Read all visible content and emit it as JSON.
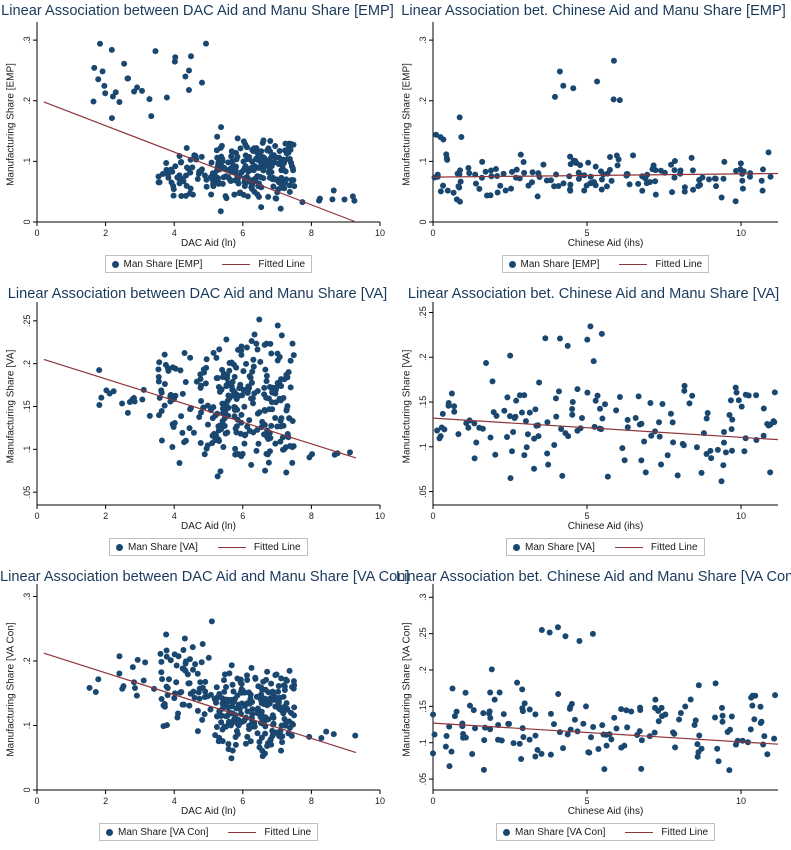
{
  "colors": {
    "marker": "#1a476f",
    "fit": "#90353b",
    "axis": "#000000",
    "title": "#1a3a5c"
  },
  "chart_data": [
    {
      "id": "p1",
      "type": "scatter",
      "title": "Linear Association between DAC Aid and Manu Share [EMP]",
      "xlabel": "DAC Aid (ln)",
      "ylabel": "Manufacturing Share [EMP]",
      "xlim": [
        0,
        10
      ],
      "ylim": [
        0,
        0.32
      ],
      "xticks": [
        "0",
        "2",
        "4",
        "6",
        "8",
        "10"
      ],
      "yticks": [
        0,
        0.1,
        0.2,
        0.3
      ],
      "ytick_labels": [
        "0",
        ".1",
        ".2",
        ".3"
      ],
      "legend": {
        "scatter": "Man Share [EMP]",
        "line": "Fitted Line"
      },
      "fit": [
        [
          0.2,
          0.198
        ],
        [
          9.3,
          0.0
        ]
      ],
      "seed": 11,
      "clusters": [
        {
          "x": [
            5.2,
            7.5
          ],
          "y": [
            0.01,
            0.16
          ],
          "n": 200
        },
        {
          "x": [
            3.5,
            5.2
          ],
          "y": [
            0.03,
            0.13
          ],
          "n": 60
        },
        {
          "x": [
            1.5,
            5
          ],
          "y": [
            0.15,
            0.32
          ],
          "n": 30
        },
        {
          "x": [
            7.2,
            9.3
          ],
          "y": [
            0.02,
            0.06
          ],
          "n": 8
        }
      ]
    },
    {
      "id": "p2",
      "type": "scatter",
      "title": "Linear Association bet. Chinese Aid and Manu Share [EMP]",
      "xlabel": "Chinese Aid (ihs)",
      "ylabel": "Manufacturing Share [EMP]",
      "xlim": [
        0,
        11.2
      ],
      "ylim": [
        0,
        0.32
      ],
      "xticks": [
        "0",
        "5",
        "10"
      ],
      "yticks": [
        0,
        0.1,
        0.2,
        0.3
      ],
      "ytick_labels": [
        "0",
        ".1",
        ".2",
        ".3"
      ],
      "legend": {
        "scatter": "Man Share [EMP]",
        "line": "Fitted Line"
      },
      "fit": [
        [
          0,
          0.074
        ],
        [
          11.2,
          0.08
        ]
      ],
      "seed": 23,
      "clusters": [
        {
          "x": [
            0,
            11
          ],
          "y": [
            0.02,
            0.13
          ],
          "n": 150
        },
        {
          "x": [
            3,
            7
          ],
          "y": [
            0.17,
            0.28
          ],
          "n": 8
        },
        {
          "x": [
            0,
            1
          ],
          "y": [
            0.1,
            0.19
          ],
          "n": 5
        }
      ]
    },
    {
      "id": "p3",
      "type": "scatter",
      "title": "Linear Association between DAC Aid and Manu Share [VA]",
      "xlabel": "DAC Aid (ln)",
      "ylabel": "Manufacturing Share [VA]",
      "xlim": [
        0,
        10
      ],
      "ylim": [
        0.035,
        0.265
      ],
      "xticks": [
        "0",
        "2",
        "4",
        "6",
        "8",
        "10"
      ],
      "yticks": [
        0.05,
        0.1,
        0.15,
        0.2,
        0.25
      ],
      "ytick_labels": [
        ".05",
        ".1",
        ".15",
        ".2",
        ".25"
      ],
      "legend": {
        "scatter": "Man Share [VA]",
        "line": "Fitted Line"
      },
      "fit": [
        [
          0.2,
          0.205
        ],
        [
          9.3,
          0.09
        ]
      ],
      "seed": 37,
      "clusters": [
        {
          "x": [
            5.2,
            7.5
          ],
          "y": [
            0.04,
            0.26
          ],
          "n": 220
        },
        {
          "x": [
            3.5,
            5.2
          ],
          "y": [
            0.06,
            0.25
          ],
          "n": 70
        },
        {
          "x": [
            1.5,
            3.5
          ],
          "y": [
            0.12,
            0.21
          ],
          "n": 15
        },
        {
          "x": [
            7.5,
            9.3
          ],
          "y": [
            0.08,
            0.11
          ],
          "n": 5
        }
      ]
    },
    {
      "id": "p4",
      "type": "scatter",
      "title": "Linear Association bet. Chinese Aid and Manu Share [VA]",
      "xlabel": "Chinese Aid (ihs)",
      "ylabel": "Manufacturing Share [VA]",
      "xlim": [
        0,
        11.2
      ],
      "ylim": [
        0.035,
        0.255
      ],
      "xticks": [
        "0",
        "5",
        "10"
      ],
      "yticks": [
        0.05,
        0.1,
        0.15,
        0.2,
        0.25
      ],
      "ytick_labels": [
        ".05",
        ".1",
        ".15",
        ".2",
        ".25"
      ],
      "legend": {
        "scatter": "Man Share [VA]",
        "line": "Fitted Line"
      },
      "fit": [
        [
          0,
          0.132
        ],
        [
          11.2,
          0.108
        ]
      ],
      "seed": 41,
      "clusters": [
        {
          "x": [
            0,
            11.2
          ],
          "y": [
            0.04,
            0.21
          ],
          "n": 150
        },
        {
          "x": [
            3.5,
            5.5
          ],
          "y": [
            0.2,
            0.245
          ],
          "n": 6
        }
      ]
    },
    {
      "id": "p5",
      "type": "scatter",
      "title": "Linear Association between DAC Aid and Manu Share [VA Con]",
      "xlabel": "DAC Aid (ln)",
      "ylabel": "Manufacturing Share [VA Con]",
      "xlim": [
        0,
        10
      ],
      "ylim": [
        0,
        0.31
      ],
      "xticks": [
        "0",
        "2",
        "4",
        "6",
        "8",
        "10"
      ],
      "yticks": [
        0,
        0.1,
        0.2,
        0.3
      ],
      "ytick_labels": [
        "0",
        ".1",
        ".2",
        ".3"
      ],
      "legend": {
        "scatter": "Man Share [VA Con]",
        "line": "Fitted Line"
      },
      "fit": [
        [
          0.2,
          0.212
        ],
        [
          9.3,
          0.058
        ]
      ],
      "seed": 53,
      "clusters": [
        {
          "x": [
            5.2,
            7.5
          ],
          "y": [
            0.03,
            0.22
          ],
          "n": 230
        },
        {
          "x": [
            3.5,
            5.2
          ],
          "y": [
            0.05,
            0.29
          ],
          "n": 70
        },
        {
          "x": [
            1.5,
            3.5
          ],
          "y": [
            0.13,
            0.22
          ],
          "n": 15
        },
        {
          "x": [
            7.5,
            9.3
          ],
          "y": [
            0.07,
            0.1
          ],
          "n": 5
        }
      ]
    },
    {
      "id": "p6",
      "type": "scatter",
      "title": "Linear Association bet. Chinese Aid and Manu Share [VA Con]",
      "xlabel": "Chinese Aid (ihs)",
      "ylabel": "Manufacturing Share [VA Con]",
      "xlim": [
        0,
        11.2
      ],
      "ylim": [
        0.035,
        0.31
      ],
      "xticks": [
        "0",
        "5",
        "10"
      ],
      "yticks": [
        0.05,
        0.1,
        0.15,
        0.2,
        0.25,
        0.3
      ],
      "ytick_labels": [
        ".05",
        ".1",
        ".15",
        ".2",
        ".25",
        ".3"
      ],
      "legend": {
        "scatter": "Man Share [VA Con]",
        "line": "Fitted Line"
      },
      "fit": [
        [
          0,
          0.127
        ],
        [
          11.2,
          0.098
        ]
      ],
      "seed": 67,
      "clusters": [
        {
          "x": [
            0,
            11.2
          ],
          "y": [
            0.04,
            0.21
          ],
          "n": 150
        },
        {
          "x": [
            3.5,
            5.5
          ],
          "y": [
            0.2,
            0.285
          ],
          "n": 6
        }
      ]
    }
  ]
}
